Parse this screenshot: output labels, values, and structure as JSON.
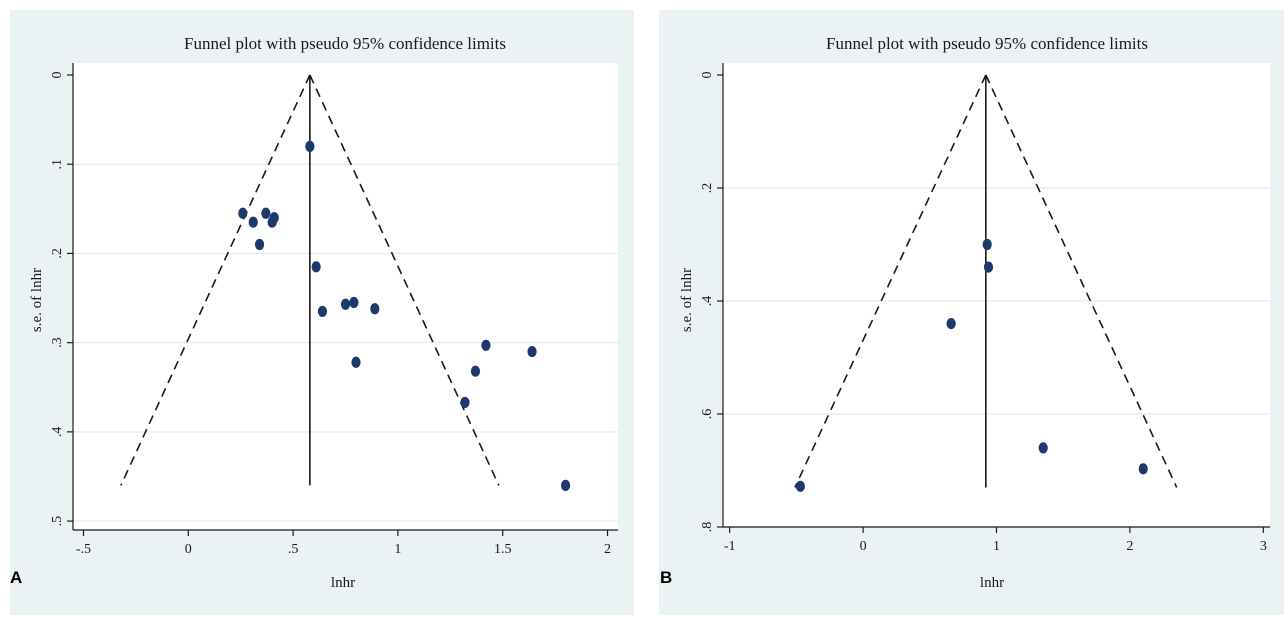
{
  "colors": {
    "background": "#eaf2f4",
    "plot_region": "#ffffff",
    "point": "#1b3a6b",
    "grid": "#e2ecef",
    "line": "#1a1a1a"
  },
  "panels": [
    {
      "letter": "A"
    },
    {
      "letter": "B"
    }
  ],
  "chart_data": [
    {
      "type": "scatter",
      "title": "Funnel plot with pseudo 95% confidence limits",
      "xlabel": "lnhr",
      "ylabel": "s.e. of lnhr",
      "xlim": [
        -0.55,
        2.05
      ],
      "ylim": [
        0,
        0.51
      ],
      "y_reversed": true,
      "xticks": [
        -0.5,
        0,
        0.5,
        1,
        1.5,
        2
      ],
      "xtick_labels": [
        "-.5",
        "0",
        ".5",
        "1",
        "1.5",
        "2"
      ],
      "yticks": [
        0,
        0.1,
        0.2,
        0.3,
        0.4,
        0.5
      ],
      "ytick_labels": [
        "0",
        ".1",
        ".2",
        ".3",
        ".4",
        ".5"
      ],
      "ygrid": true,
      "pooled_estimate": 0.58,
      "se_max": 0.46,
      "points": [
        {
          "x": 0.58,
          "y": 0.08
        },
        {
          "x": 0.26,
          "y": 0.155
        },
        {
          "x": 0.31,
          "y": 0.165
        },
        {
          "x": 0.37,
          "y": 0.155
        },
        {
          "x": 0.4,
          "y": 0.165
        },
        {
          "x": 0.41,
          "y": 0.16
        },
        {
          "x": 0.34,
          "y": 0.19
        },
        {
          "x": 0.61,
          "y": 0.215
        },
        {
          "x": 0.64,
          "y": 0.265
        },
        {
          "x": 0.75,
          "y": 0.257
        },
        {
          "x": 0.79,
          "y": 0.255
        },
        {
          "x": 0.89,
          "y": 0.262
        },
        {
          "x": 0.8,
          "y": 0.322
        },
        {
          "x": 1.42,
          "y": 0.303
        },
        {
          "x": 1.64,
          "y": 0.31
        },
        {
          "x": 1.37,
          "y": 0.332
        },
        {
          "x": 1.32,
          "y": 0.367
        },
        {
          "x": 1.8,
          "y": 0.46
        }
      ]
    },
    {
      "type": "scatter",
      "title": "Funnel plot with pseudo 95% confidence limits",
      "xlabel": "lnhr",
      "ylabel": "s.e. of lnhr",
      "xlim": [
        -1.05,
        3.05
      ],
      "ylim": [
        0,
        0.8
      ],
      "y_reversed": true,
      "xticks": [
        -1,
        0,
        1,
        2,
        3
      ],
      "xtick_labels": [
        "-1",
        "0",
        "1",
        "2",
        "3"
      ],
      "yticks": [
        0,
        0.2,
        0.4,
        0.6,
        0.8
      ],
      "ytick_labels": [
        "0",
        ".2",
        ".4",
        ".6",
        ".8"
      ],
      "ygrid": true,
      "pooled_estimate": 0.92,
      "se_max": 0.73,
      "points": [
        {
          "x": 0.93,
          "y": 0.3
        },
        {
          "x": 0.94,
          "y": 0.34
        },
        {
          "x": 0.66,
          "y": 0.44
        },
        {
          "x": 1.35,
          "y": 0.66
        },
        {
          "x": 2.1,
          "y": 0.697
        },
        {
          "x": -0.47,
          "y": 0.728
        }
      ]
    }
  ]
}
